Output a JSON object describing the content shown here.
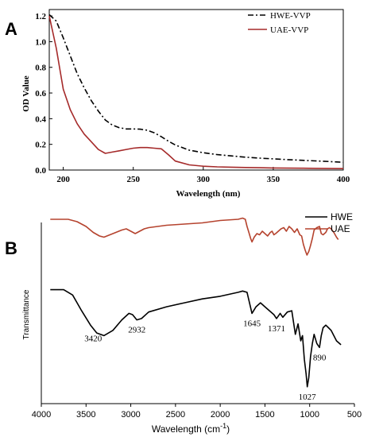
{
  "chart_data": [
    {
      "panel_label": "A",
      "type": "line",
      "title": "",
      "xlabel": "Wavelength (nm)",
      "ylabel": "OD Value",
      "xlim": [
        190,
        400
      ],
      "ylim": [
        0,
        1.25
      ],
      "xticks": [
        200,
        250,
        300,
        350,
        400
      ],
      "yticks": [
        0.0,
        0.2,
        0.4,
        0.6,
        0.8,
        1.0,
        1.2
      ],
      "xtick_labels": [
        "200",
        "250",
        "300",
        "350",
        "400"
      ],
      "ytick_labels": [
        "0.0",
        "0.2",
        "0.4",
        "0.6",
        "0.8",
        "1.0",
        "1.2"
      ],
      "grid": false,
      "legend_position": "top-right",
      "series": [
        {
          "name": "HWE-VVP",
          "color": "#000000",
          "style": "dash-dot",
          "x": [
            190,
            195,
            200,
            205,
            210,
            215,
            220,
            225,
            230,
            235,
            240,
            245,
            250,
            255,
            260,
            265,
            270,
            275,
            280,
            290,
            300,
            310,
            320,
            330,
            340,
            350,
            360,
            370,
            380,
            390,
            400
          ],
          "y": [
            1.21,
            1.16,
            1.03,
            0.89,
            0.75,
            0.64,
            0.54,
            0.46,
            0.39,
            0.35,
            0.33,
            0.32,
            0.32,
            0.318,
            0.31,
            0.29,
            0.26,
            0.225,
            0.195,
            0.155,
            0.135,
            0.12,
            0.11,
            0.1,
            0.093,
            0.087,
            0.081,
            0.076,
            0.071,
            0.066,
            0.06
          ]
        },
        {
          "name": "UAE-VVP",
          "color": "#a52a2a",
          "style": "solid",
          "x": [
            190,
            195,
            200,
            205,
            210,
            215,
            220,
            225,
            230,
            235,
            240,
            245,
            250,
            255,
            260,
            265,
            270,
            275,
            280,
            290,
            300,
            310,
            320,
            330,
            340,
            350,
            360,
            370,
            380,
            390,
            400
          ],
          "y": [
            1.2,
            0.95,
            0.63,
            0.47,
            0.36,
            0.28,
            0.22,
            0.16,
            0.13,
            0.14,
            0.15,
            0.16,
            0.17,
            0.175,
            0.175,
            0.17,
            0.165,
            0.12,
            0.07,
            0.04,
            0.03,
            0.025,
            0.022,
            0.02,
            0.018,
            0.016,
            0.015,
            0.014,
            0.013,
            0.012,
            0.011
          ]
        }
      ]
    },
    {
      "panel_label": "B",
      "type": "line",
      "title": "",
      "xlabel": "Wavelength (cm",
      "xlabel_sup": "-1",
      "xlabel_end": ")",
      "ylabel": "Transmittance",
      "xlim": [
        4000,
        500
      ],
      "xticks": [
        4000,
        3500,
        3000,
        2500,
        2000,
        1500,
        1000,
        500
      ],
      "xtick_labels": [
        "4000",
        "3500",
        "3000",
        "2500",
        "2000",
        "1500",
        "1000",
        "500"
      ],
      "grid": false,
      "legend_position": "top-right",
      "peak_labels": [
        {
          "x": 3420,
          "text": "3420"
        },
        {
          "x": 2932,
          "text": "2932"
        },
        {
          "x": 1645,
          "text": "1645"
        },
        {
          "x": 1371,
          "text": "1371"
        },
        {
          "x": 1027,
          "text": "1027"
        },
        {
          "x": 890,
          "text": "890"
        }
      ],
      "series": [
        {
          "name": "HWE",
          "color": "#000000",
          "x": [
            3900,
            3750,
            3650,
            3550,
            3450,
            3380,
            3300,
            3200,
            3100,
            3020,
            2980,
            2932,
            2880,
            2800,
            2600,
            2400,
            2200,
            2000,
            1800,
            1750,
            1700,
            1645,
            1600,
            1550,
            1500,
            1450,
            1400,
            1371,
            1330,
            1300,
            1250,
            1200,
            1160,
            1130,
            1100,
            1080,
            1060,
            1040,
            1027,
            1010,
            990,
            970,
            950,
            920,
            890,
            870,
            850,
            820,
            790,
            760,
            730,
            700,
            650
          ],
          "y": [
            0.79,
            0.79,
            0.75,
            0.63,
            0.52,
            0.46,
            0.44,
            0.48,
            0.56,
            0.61,
            0.6,
            0.56,
            0.57,
            0.62,
            0.66,
            0.69,
            0.72,
            0.74,
            0.77,
            0.78,
            0.77,
            0.61,
            0.66,
            0.69,
            0.66,
            0.63,
            0.6,
            0.57,
            0.61,
            0.58,
            0.62,
            0.63,
            0.45,
            0.53,
            0.4,
            0.44,
            0.26,
            0.15,
            0.05,
            0.12,
            0.28,
            0.38,
            0.45,
            0.38,
            0.35,
            0.44,
            0.5,
            0.52,
            0.5,
            0.48,
            0.44,
            0.4,
            0.37
          ]
        },
        {
          "name": "UAE",
          "color": "#b5432e",
          "x": [
            3900,
            3700,
            3600,
            3500,
            3420,
            3350,
            3300,
            3200,
            3100,
            3050,
            3000,
            2950,
            2900,
            2850,
            2800,
            2600,
            2400,
            2200,
            2000,
            1800,
            1750,
            1720,
            1700,
            1680,
            1660,
            1645,
            1620,
            1590,
            1560,
            1530,
            1500,
            1470,
            1440,
            1420,
            1400,
            1380,
            1350,
            1320,
            1290,
            1260,
            1230,
            1200,
            1170,
            1140,
            1110,
            1090,
            1070,
            1050,
            1030,
            1010,
            990,
            970,
            950,
            920,
            890,
            870,
            850,
            820,
            800,
            780,
            760,
            730,
            700,
            680
          ],
          "y": [
            0.96,
            0.96,
            0.94,
            0.9,
            0.85,
            0.82,
            0.81,
            0.84,
            0.87,
            0.88,
            0.86,
            0.84,
            0.86,
            0.88,
            0.89,
            0.91,
            0.92,
            0.93,
            0.95,
            0.96,
            0.97,
            0.96,
            0.9,
            0.85,
            0.8,
            0.77,
            0.81,
            0.84,
            0.83,
            0.86,
            0.84,
            0.82,
            0.85,
            0.86,
            0.83,
            0.84,
            0.86,
            0.88,
            0.89,
            0.86,
            0.9,
            0.88,
            0.85,
            0.88,
            0.83,
            0.82,
            0.75,
            0.7,
            0.66,
            0.69,
            0.74,
            0.8,
            0.87,
            0.89,
            0.9,
            0.84,
            0.83,
            0.85,
            0.88,
            0.89,
            0.88,
            0.85,
            0.81,
            0.79
          ]
        }
      ]
    }
  ]
}
